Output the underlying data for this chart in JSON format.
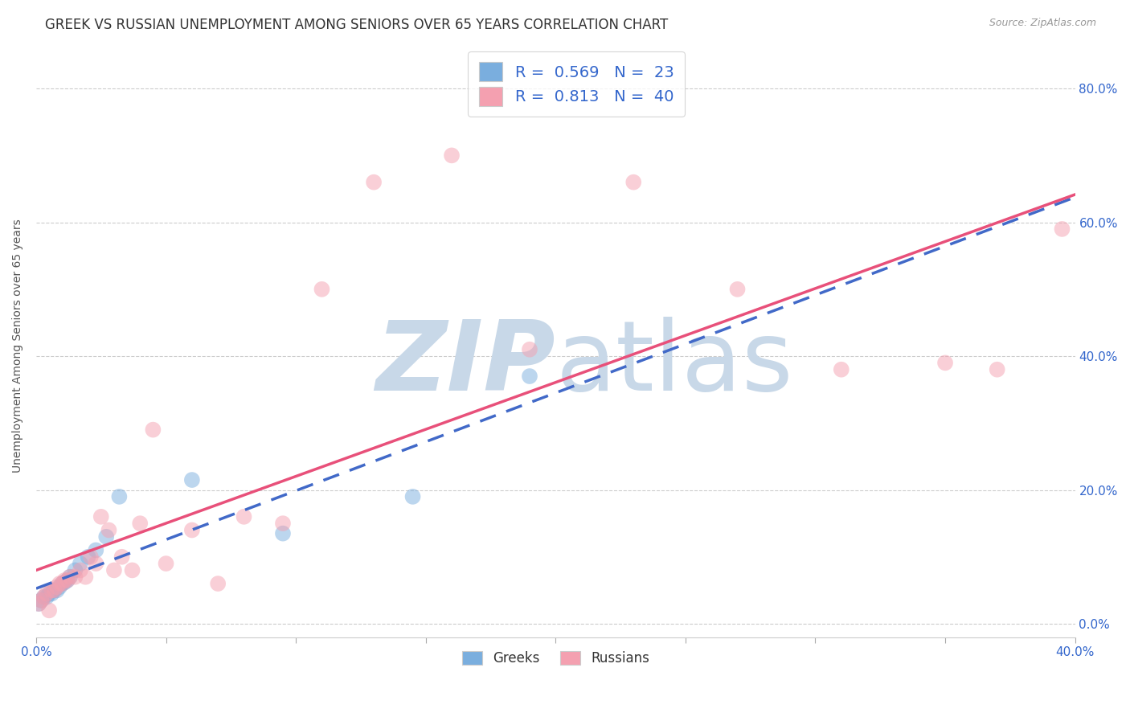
{
  "title": "GREEK VS RUSSIAN UNEMPLOYMENT AMONG SENIORS OVER 65 YEARS CORRELATION CHART",
  "source": "Source: ZipAtlas.com",
  "ylabel": "Unemployment Among Seniors over 65 years",
  "xlim": [
    0.0,
    0.4
  ],
  "ylim": [
    -0.02,
    0.85
  ],
  "xticks": [
    0.0,
    0.05,
    0.1,
    0.15,
    0.2,
    0.25,
    0.3,
    0.35,
    0.4
  ],
  "xtick_labels": [
    "0.0%",
    "",
    "",
    "",
    "",
    "",
    "",
    "",
    "40.0%"
  ],
  "yticks_right": [
    0.0,
    0.2,
    0.4,
    0.6,
    0.8
  ],
  "ytick_labels_right": [
    "0.0%",
    "20.0%",
    "40.0%",
    "60.0%",
    "80.0%"
  ],
  "background_color": "#ffffff",
  "watermark_zip": "ZIP",
  "watermark_atlas": "atlas",
  "watermark_color": "#c8d8e8",
  "greek_color": "#7aaede",
  "russian_color": "#f4a0b0",
  "greek_line_color": "#4169c8",
  "russian_line_color": "#e8507a",
  "legend_greek_R": "0.569",
  "legend_greek_N": "23",
  "legend_russian_R": "0.813",
  "legend_russian_N": "40",
  "greek_x": [
    0.001,
    0.002,
    0.003,
    0.004,
    0.005,
    0.006,
    0.007,
    0.008,
    0.009,
    0.01,
    0.011,
    0.012,
    0.013,
    0.015,
    0.017,
    0.02,
    0.023,
    0.027,
    0.032,
    0.06,
    0.095,
    0.145,
    0.19
  ],
  "greek_y": [
    0.03,
    0.035,
    0.04,
    0.04,
    0.045,
    0.045,
    0.05,
    0.05,
    0.055,
    0.06,
    0.062,
    0.065,
    0.07,
    0.08,
    0.09,
    0.1,
    0.11,
    0.13,
    0.19,
    0.215,
    0.135,
    0.19,
    0.37
  ],
  "russian_x": [
    0.001,
    0.002,
    0.003,
    0.004,
    0.005,
    0.006,
    0.007,
    0.008,
    0.009,
    0.01,
    0.011,
    0.012,
    0.013,
    0.015,
    0.017,
    0.019,
    0.021,
    0.023,
    0.025,
    0.028,
    0.03,
    0.033,
    0.037,
    0.04,
    0.045,
    0.05,
    0.06,
    0.07,
    0.08,
    0.095,
    0.11,
    0.13,
    0.16,
    0.19,
    0.23,
    0.27,
    0.31,
    0.35,
    0.37,
    0.395
  ],
  "russian_y": [
    0.03,
    0.035,
    0.04,
    0.045,
    0.02,
    0.05,
    0.05,
    0.055,
    0.06,
    0.06,
    0.065,
    0.065,
    0.07,
    0.07,
    0.08,
    0.07,
    0.1,
    0.09,
    0.16,
    0.14,
    0.08,
    0.1,
    0.08,
    0.15,
    0.29,
    0.09,
    0.14,
    0.06,
    0.16,
    0.15,
    0.5,
    0.66,
    0.7,
    0.41,
    0.66,
    0.5,
    0.38,
    0.39,
    0.38,
    0.59
  ],
  "title_fontsize": 12,
  "axis_fontsize": 11,
  "legend_fontsize": 14,
  "marker_size": 200,
  "grid_color": "#cccccc"
}
